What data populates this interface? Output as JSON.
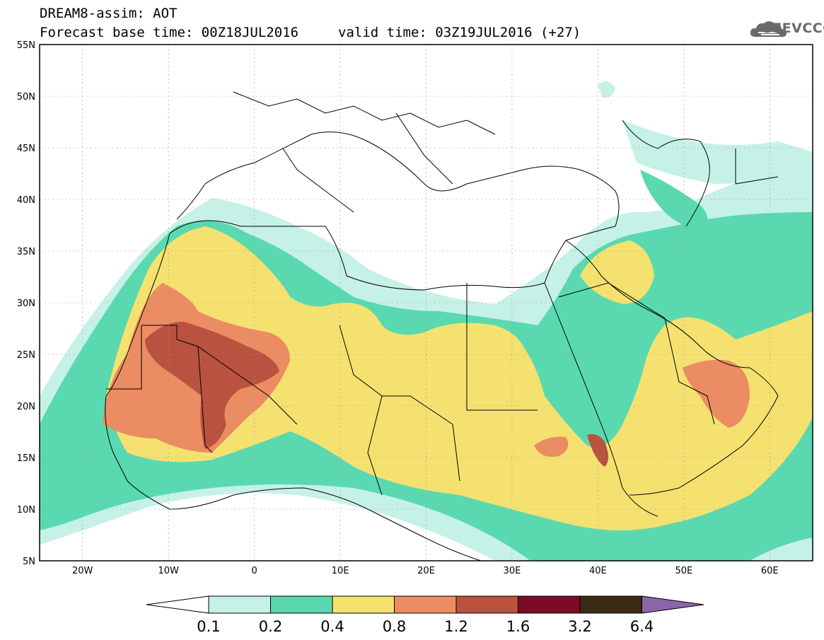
{
  "header": {
    "title_line1": "DREAM8-assim: AOT",
    "title_line2": "Forecast base time: 00Z18JUL2016",
    "title_line2b": "valid time: 03Z19JUL2016 (+27)",
    "logo_text": "SEEVCCC"
  },
  "map": {
    "lon_range": [
      -25,
      65
    ],
    "lat_range": [
      5,
      55
    ],
    "lat_labels": [
      "55N",
      "50N",
      "45N",
      "40N",
      "35N",
      "30N",
      "25N",
      "20N",
      "15N",
      "10N",
      "5N"
    ],
    "lon_labels": [
      "20W",
      "10W",
      "0",
      "10E",
      "20E",
      "30E",
      "40E",
      "50E",
      "60E"
    ]
  },
  "colorbar": {
    "levels": [
      "0.1",
      "0.2",
      "0.4",
      "0.8",
      "1.2",
      "1.6",
      "3.2",
      "6.4"
    ],
    "colors": [
      "#ffffff",
      "#c6f1e6",
      "#5ad9b0",
      "#f5e170",
      "#eb8c62",
      "#b9523f",
      "#7d0a28",
      "#3a2a14",
      "#8a66a8"
    ]
  }
}
